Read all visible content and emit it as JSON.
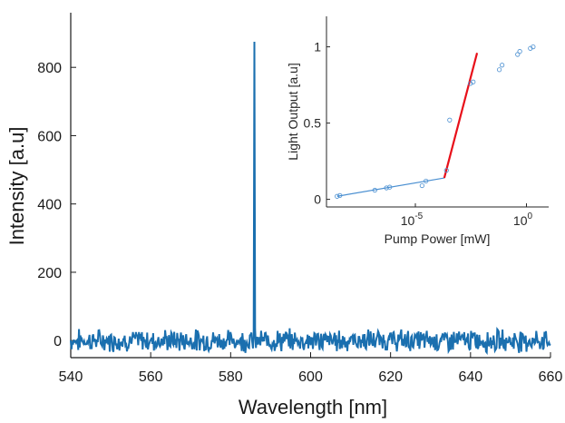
{
  "chart_data": [
    {
      "type": "line",
      "title": "",
      "xlabel": "Wavelength [nm]",
      "ylabel": "Intensity [a.u]",
      "xlim": [
        540,
        660
      ],
      "ylim": [
        -50,
        960
      ],
      "x_ticks": [
        540,
        560,
        580,
        600,
        620,
        640,
        660
      ],
      "y_ticks": [
        0,
        200,
        400,
        600,
        800
      ],
      "noise_amplitude": 25,
      "peak": {
        "x": 586,
        "y": 875
      },
      "line_color": "#1a6faf",
      "grid": false
    },
    {
      "type": "scatter",
      "title": "",
      "xlabel": "Pump Power [mW]",
      "ylabel": "Light Output [a.u]",
      "x_scale": "log",
      "xlim": [
        1e-09,
        10
      ],
      "ylim": [
        -0.05,
        1.2
      ],
      "x_ticks": [
        {
          "value": 1e-05,
          "base": "10",
          "exp": "-5"
        },
        {
          "value": 1,
          "base": "10",
          "exp": "0"
        }
      ],
      "y_ticks": [
        "0",
        "0.5",
        "1"
      ],
      "points": [
        {
          "x": 3e-09,
          "y": 0.02
        },
        {
          "x": 4e-09,
          "y": 0.025
        },
        {
          "x": 1.5e-07,
          "y": 0.06
        },
        {
          "x": 5e-07,
          "y": 0.075
        },
        {
          "x": 7e-07,
          "y": 0.08
        },
        {
          "x": 2e-05,
          "y": 0.09
        },
        {
          "x": 3e-05,
          "y": 0.12
        },
        {
          "x": 0.00025,
          "y": 0.19
        },
        {
          "x": 0.00035,
          "y": 0.52
        },
        {
          "x": 0.003,
          "y": 0.76
        },
        {
          "x": 0.004,
          "y": 0.77
        },
        {
          "x": 0.06,
          "y": 0.85
        },
        {
          "x": 0.08,
          "y": 0.88
        },
        {
          "x": 0.4,
          "y": 0.95
        },
        {
          "x": 0.5,
          "y": 0.97
        },
        {
          "x": 1.5,
          "y": 0.99
        },
        {
          "x": 2,
          "y": 1.0
        }
      ],
      "fit_below": {
        "from": [
          3e-09,
          0.02
        ],
        "to": [
          0.0002,
          0.14
        ],
        "color": "#4a8fd1"
      },
      "fit_above": {
        "from": [
          0.0002,
          0.14
        ],
        "to": [
          0.006,
          0.96
        ],
        "color": "#e8101a"
      },
      "marker_color": "#4a8fd1"
    }
  ]
}
